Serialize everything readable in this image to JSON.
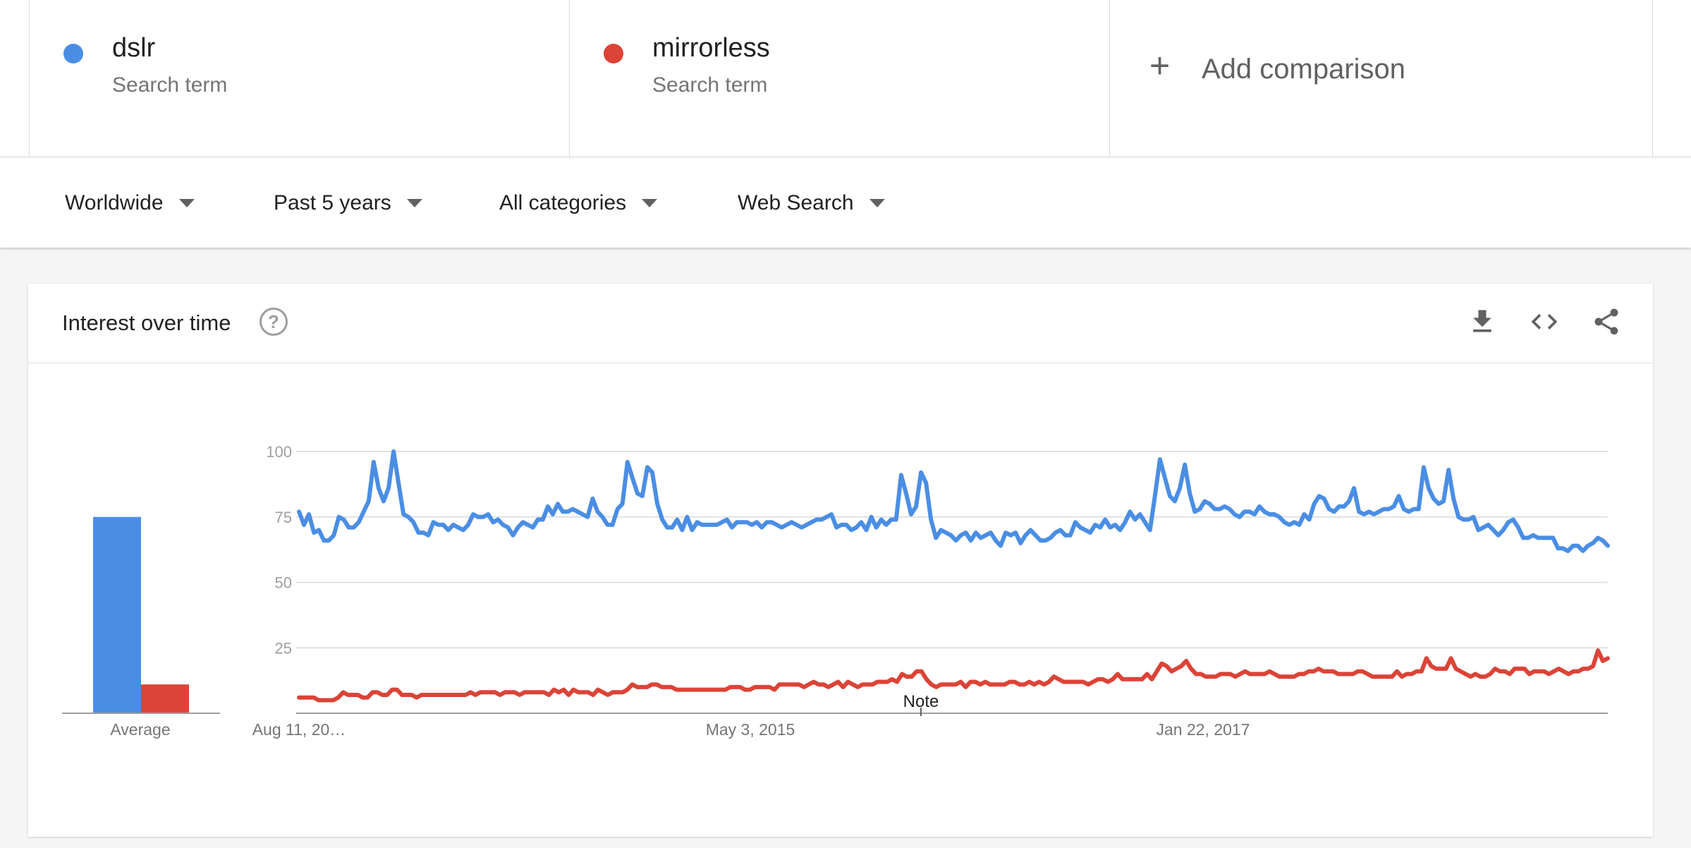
{
  "terms": [
    {
      "name": "dslr",
      "sub": "Search term",
      "color": "#4a8ee4"
    },
    {
      "name": "mirrorless",
      "sub": "Search term",
      "color": "#db4437"
    }
  ],
  "add_comparison": "Add comparison",
  "filters": [
    "Worldwide",
    "Past 5 years",
    "All categories",
    "Web Search"
  ],
  "card": {
    "title": "Interest over time",
    "icons": [
      "download-icon",
      "embed-code-icon",
      "share-icon"
    ]
  },
  "chart_data": [
    {
      "type": "bar",
      "categories": [
        "Average"
      ],
      "series": [
        {
          "name": "dslr",
          "values": [
            75
          ],
          "color": "#4a8ee4"
        },
        {
          "name": "mirrorless",
          "values": [
            11
          ],
          "color": "#db4437"
        }
      ],
      "ylim": [
        0,
        100
      ],
      "xlabel": "Average"
    },
    {
      "type": "line",
      "ylim": [
        0,
        100
      ],
      "yticks": [
        25,
        50,
        75,
        100
      ],
      "x_start": "Aug 11, 20…",
      "x_ticks": [
        "Aug 11, 20…",
        "May 3, 2015",
        "Jan 22, 2017"
      ],
      "annotation": "Note",
      "grid": true,
      "series": [
        {
          "name": "dslr",
          "color": "#4a8ee4",
          "values": [
            77,
            72,
            76,
            69,
            70,
            66,
            66,
            68,
            75,
            74,
            71,
            71,
            73,
            77,
            81,
            96,
            86,
            81,
            86,
            100,
            88,
            76,
            75,
            73,
            69,
            69,
            68,
            73,
            72,
            72,
            70,
            72,
            71,
            70,
            72,
            76,
            75,
            75,
            76,
            73,
            74,
            72,
            71,
            68,
            71,
            73,
            72,
            71,
            74,
            74,
            79,
            76,
            80,
            77,
            77,
            78,
            77,
            76,
            75,
            82,
            77,
            75,
            72,
            72,
            78,
            80,
            96,
            90,
            84,
            83,
            94,
            92,
            80,
            74,
            71,
            71,
            74,
            70,
            75,
            70,
            73,
            72,
            72,
            72,
            72,
            73,
            74,
            71,
            73,
            73,
            73,
            72,
            73,
            71,
            73,
            73,
            72,
            71,
            72,
            73,
            72,
            71,
            72,
            73,
            74,
            74,
            75,
            76,
            71,
            72,
            72,
            70,
            71,
            73,
            70,
            75,
            71,
            74,
            72,
            74,
            74,
            91,
            84,
            76,
            79,
            92,
            88,
            74,
            67,
            70,
            69,
            68,
            66,
            68,
            69,
            66,
            69,
            67,
            68,
            69,
            66,
            64,
            69,
            68,
            69,
            65,
            68,
            70,
            68,
            66,
            66,
            67,
            69,
            70,
            68,
            68,
            73,
            71,
            70,
            69,
            72,
            71,
            74,
            71,
            72,
            70,
            73,
            77,
            74,
            76,
            73,
            70,
            83,
            97,
            90,
            83,
            81,
            86,
            95,
            84,
            77,
            78,
            81,
            80,
            78,
            78,
            79,
            78,
            76,
            75,
            77,
            77,
            76,
            79,
            77,
            76,
            76,
            75,
            73,
            72,
            73,
            72,
            76,
            74,
            80,
            83,
            82,
            78,
            77,
            79,
            79,
            81,
            86,
            77,
            76,
            77,
            76,
            77,
            78,
            78,
            79,
            83,
            78,
            77,
            78,
            78,
            94,
            86,
            82,
            80,
            81,
            93,
            82,
            75,
            74,
            74,
            75,
            70,
            71,
            72,
            70,
            68,
            70,
            73,
            74,
            71,
            67,
            67,
            68,
            67,
            67,
            67,
            67,
            63,
            63,
            62,
            64,
            64,
            62,
            64,
            65,
            67,
            66,
            64
          ]
        },
        {
          "name": "mirrorless",
          "color": "#db4437",
          "values": [
            6,
            6,
            6,
            6,
            5,
            5,
            5,
            5,
            6,
            8,
            7,
            7,
            7,
            6,
            6,
            8,
            8,
            7,
            7,
            9,
            9,
            7,
            7,
            7,
            6,
            7,
            7,
            7,
            7,
            7,
            7,
            7,
            7,
            7,
            7,
            8,
            7,
            8,
            8,
            8,
            8,
            7,
            8,
            8,
            8,
            7,
            8,
            8,
            8,
            8,
            8,
            7,
            9,
            8,
            9,
            7,
            9,
            8,
            8,
            8,
            7,
            9,
            8,
            7,
            8,
            8,
            8,
            9,
            11,
            10,
            10,
            10,
            11,
            11,
            10,
            10,
            10,
            9,
            9,
            9,
            9,
            9,
            9,
            9,
            9,
            9,
            9,
            9,
            10,
            10,
            10,
            9,
            9,
            10,
            10,
            10,
            10,
            9,
            11,
            11,
            11,
            11,
            11,
            10,
            11,
            12,
            11,
            11,
            10,
            11,
            12,
            10,
            12,
            11,
            10,
            11,
            11,
            11,
            12,
            12,
            12,
            13,
            12,
            15,
            14,
            14,
            16,
            16,
            13,
            11,
            10,
            11,
            11,
            11,
            11,
            12,
            10,
            12,
            12,
            11,
            12,
            11,
            11,
            11,
            11,
            12,
            12,
            11,
            11,
            12,
            11,
            12,
            11,
            12,
            14,
            13,
            12,
            12,
            12,
            12,
            12,
            11,
            12,
            13,
            13,
            12,
            13,
            15,
            13,
            13,
            13,
            13,
            13,
            15,
            13,
            16,
            19,
            18,
            16,
            17,
            18,
            20,
            17,
            15,
            15,
            14,
            14,
            14,
            15,
            15,
            15,
            14,
            15,
            16,
            15,
            15,
            15,
            15,
            16,
            15,
            14,
            14,
            14,
            14,
            15,
            15,
            16,
            16,
            17,
            16,
            16,
            16,
            15,
            15,
            15,
            15,
            16,
            16,
            15,
            14,
            14,
            14,
            14,
            14,
            16,
            14,
            15,
            15,
            16,
            16,
            21,
            18,
            17,
            17,
            17,
            21,
            17,
            16,
            15,
            14,
            15,
            14,
            14,
            15,
            17,
            16,
            16,
            15,
            17,
            17,
            17,
            15,
            16,
            16,
            16,
            15,
            16,
            17,
            16,
            15,
            16,
            16,
            17,
            17,
            18,
            24,
            20,
            21
          ]
        }
      ]
    }
  ]
}
